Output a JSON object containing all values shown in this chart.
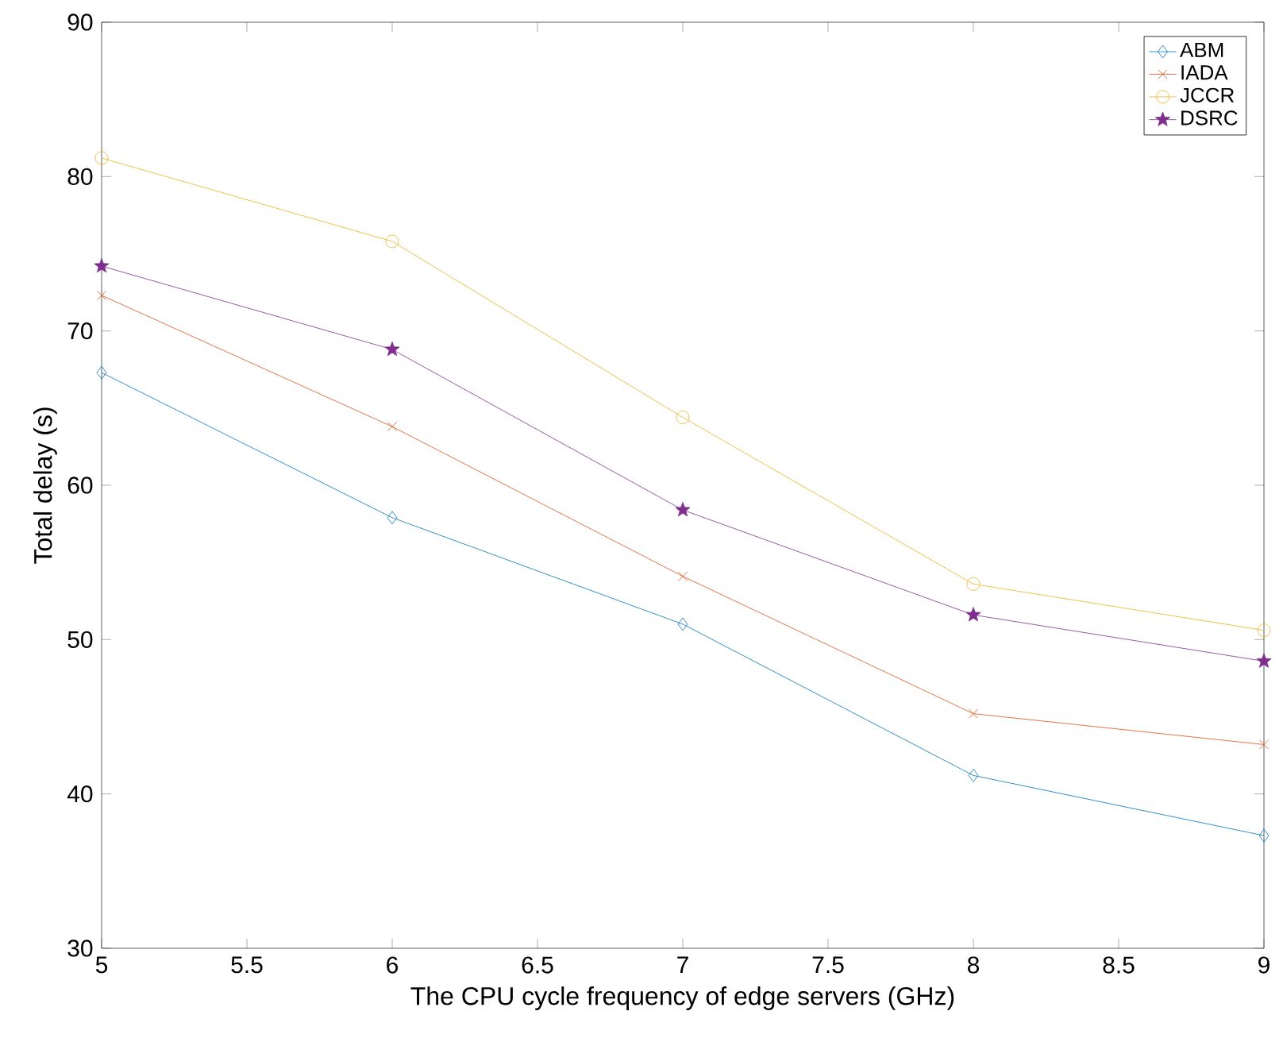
{
  "chart_data": {
    "type": "line",
    "xlabel": "The CPU cycle frequency of edge servers (GHz)",
    "ylabel": "Total delay (s)",
    "x": [
      5,
      6,
      7,
      8,
      9
    ],
    "series": [
      {
        "name": "ABM",
        "color": "#0072bd",
        "marker": "diamond",
        "values": [
          67.3,
          57.9,
          51.0,
          41.2,
          37.3
        ]
      },
      {
        "name": "IADA",
        "color": "#d95319",
        "marker": "cross",
        "values": [
          72.3,
          63.8,
          54.1,
          45.2,
          43.2
        ]
      },
      {
        "name": "JCCR",
        "color": "#edb120",
        "marker": "circle",
        "values": [
          81.2,
          75.8,
          64.4,
          53.6,
          50.6
        ]
      },
      {
        "name": "DSRC",
        "color": "#7e2f8e",
        "marker": "star",
        "values": [
          74.2,
          68.8,
          58.4,
          51.6,
          48.6
        ]
      }
    ],
    "xlim": [
      5,
      9
    ],
    "xticks": [
      5,
      5.5,
      6,
      6.5,
      7,
      7.5,
      8,
      8.5,
      9
    ],
    "ylim": [
      30,
      90
    ],
    "yticks": [
      30,
      40,
      50,
      60,
      70,
      80,
      90
    ],
    "grid": false,
    "legend": "top right"
  }
}
